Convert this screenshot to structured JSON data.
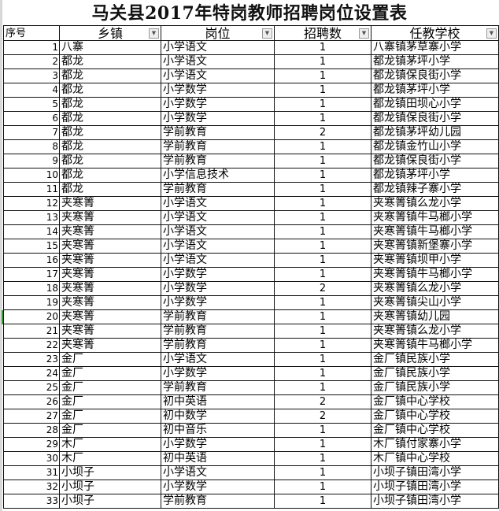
{
  "title": "马关县2017年特岗教师招聘岗位设置表",
  "headers": [
    "序号",
    "乡镇",
    "岗位",
    "招聘数",
    "任教学校"
  ],
  "filter_icon": "dropdown-arrow-icon",
  "rows": [
    [
      "1",
      "八寨",
      "小学语文",
      "1",
      "八寨镇茅草寨小学"
    ],
    [
      "2",
      "都龙",
      "小学语文",
      "1",
      "都龙镇茅坪小学"
    ],
    [
      "3",
      "都龙",
      "小学语文",
      "1",
      "都龙镇保良街小学"
    ],
    [
      "4",
      "都龙",
      "小学数学",
      "1",
      "都龙镇茅坪小学"
    ],
    [
      "5",
      "都龙",
      "小学数学",
      "1",
      "都龙镇田坝心小学"
    ],
    [
      "6",
      "都龙",
      "小学数学",
      "1",
      "都龙镇保良街小学"
    ],
    [
      "7",
      "都龙",
      "学前教育",
      "2",
      "都龙镇茅坪幼儿园"
    ],
    [
      "8",
      "都龙",
      "学前教育",
      "1",
      "都龙镇金竹山小学"
    ],
    [
      "9",
      "都龙",
      "学前教育",
      "1",
      "都龙镇保良街小学"
    ],
    [
      "10",
      "都龙",
      "小学信息技术",
      "1",
      "都龙镇茅坪小学"
    ],
    [
      "11",
      "都龙",
      "学前教育",
      "1",
      "都龙镇辣子寨小学"
    ],
    [
      "12",
      "夹寒箐",
      "小学语文",
      "1",
      "夹寒箐镇么龙小学"
    ],
    [
      "13",
      "夹寒箐",
      "小学语文",
      "1",
      "夹寒箐镇牛马榔小学"
    ],
    [
      "14",
      "夹寒箐",
      "小学语文",
      "1",
      "夹寒箐镇牛马榔小学"
    ],
    [
      "15",
      "夹寒箐",
      "小学语文",
      "1",
      "夹寒箐镇新堡寨小学"
    ],
    [
      "16",
      "夹寒箐",
      "小学语文",
      "1",
      "夹寒箐镇坝甲小学"
    ],
    [
      "17",
      "夹寒箐",
      "小学数学",
      "1",
      "夹寒箐镇牛马榔小学"
    ],
    [
      "18",
      "夹寒箐",
      "小学数学",
      "2",
      "夹寒箐镇么龙小学"
    ],
    [
      "19",
      "夹寒箐",
      "小学数学",
      "1",
      "夹寒箐镇尖山小学"
    ],
    [
      "20",
      "夹寒箐",
      "学前教育",
      "1",
      "夹寒箐镇幼儿园"
    ],
    [
      "21",
      "夹寒箐",
      "学前教育",
      "1",
      "夹寒箐镇么龙小学"
    ],
    [
      "22",
      "夹寒箐",
      "学前教育",
      "1",
      "夹寒箐镇牛马榔小学"
    ],
    [
      "23",
      "金厂",
      "小学语文",
      "1",
      "金厂镇民族小学"
    ],
    [
      "24",
      "金厂",
      "小学数学",
      "1",
      "金厂镇民族小学"
    ],
    [
      "25",
      "金厂",
      "学前教育",
      "1",
      "金厂镇民族小学"
    ],
    [
      "26",
      "金厂",
      "初中英语",
      "2",
      "金厂镇中心学校"
    ],
    [
      "27",
      "金厂",
      "初中数学",
      "2",
      "金厂镇中心学校"
    ],
    [
      "28",
      "金厂",
      "初中音乐",
      "1",
      "金厂镇中心学校"
    ],
    [
      "29",
      "木厂",
      "小学数学",
      "1",
      "木厂镇付家寨小学"
    ],
    [
      "30",
      "木厂",
      "初中英语",
      "1",
      "木厂镇中心学校"
    ],
    [
      "31",
      "小坝子",
      "小学语文",
      "1",
      "小坝子镇田湾小学"
    ],
    [
      "32",
      "小坝子",
      "小学数学",
      "1",
      "小坝子镇田湾小学"
    ],
    [
      "33",
      "小坝子",
      "学前教育",
      "1",
      "小坝子镇田湾小学"
    ]
  ]
}
